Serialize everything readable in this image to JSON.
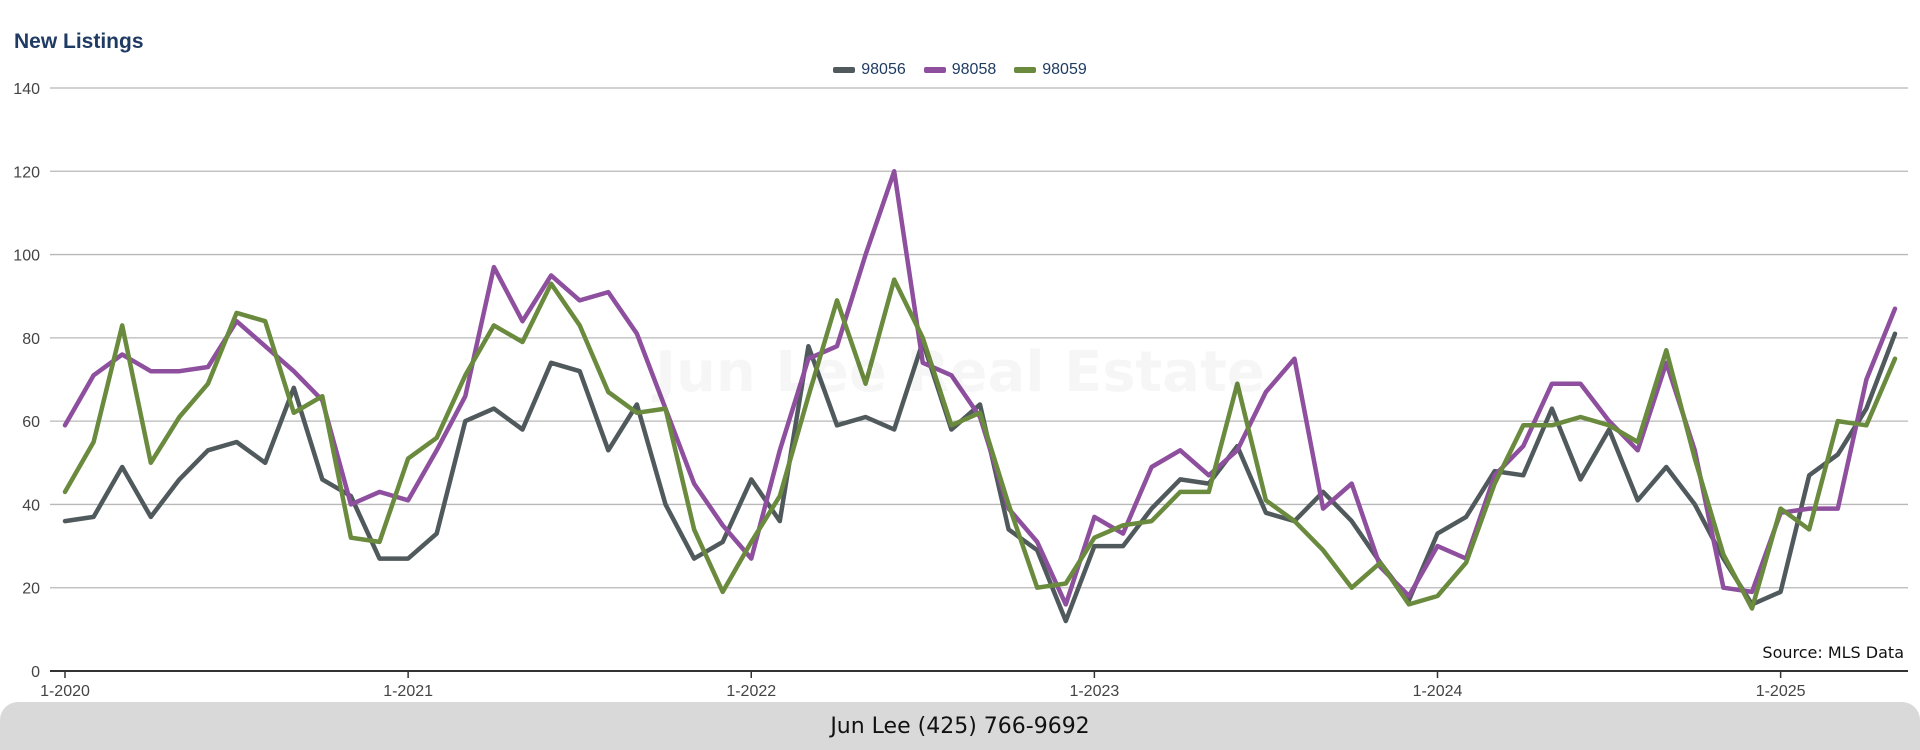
{
  "chart_data": {
    "type": "line",
    "title": "New Listings",
    "ylim": [
      0,
      140
    ],
    "y_ticks": [
      0,
      20,
      40,
      60,
      80,
      100,
      120,
      140
    ],
    "x_tick_labels": [
      "1-2020",
      "1-2021",
      "1-2022",
      "1-2023",
      "1-2024",
      "1-2025"
    ],
    "grid": true,
    "legend_position": "top-center",
    "x_start": "2020-01",
    "x_end": "2025-05",
    "x": [
      "2020-01",
      "2020-02",
      "2020-03",
      "2020-04",
      "2020-05",
      "2020-06",
      "2020-07",
      "2020-08",
      "2020-09",
      "2020-10",
      "2020-11",
      "2020-12",
      "2021-01",
      "2021-02",
      "2021-03",
      "2021-04",
      "2021-05",
      "2021-06",
      "2021-07",
      "2021-08",
      "2021-09",
      "2021-10",
      "2021-11",
      "2021-12",
      "2022-01",
      "2022-02",
      "2022-03",
      "2022-04",
      "2022-05",
      "2022-06",
      "2022-07",
      "2022-08",
      "2022-09",
      "2022-10",
      "2022-11",
      "2022-12",
      "2023-01",
      "2023-02",
      "2023-03",
      "2023-04",
      "2023-05",
      "2023-06",
      "2023-07",
      "2023-08",
      "2023-09",
      "2023-10",
      "2023-11",
      "2023-12",
      "2024-01",
      "2024-02",
      "2024-03",
      "2024-04",
      "2024-05",
      "2024-06",
      "2024-07",
      "2024-08",
      "2024-09",
      "2024-10",
      "2024-11",
      "2024-12",
      "2025-01",
      "2025-02",
      "2025-03",
      "2025-04",
      "2025-05"
    ],
    "series": [
      {
        "name": "98056",
        "color": "#505a5c",
        "values": [
          36,
          37,
          49,
          37,
          46,
          53,
          55,
          50,
          68,
          46,
          42,
          27,
          27,
          33,
          60,
          63,
          58,
          74,
          72,
          53,
          64,
          40,
          27,
          31,
          46,
          36,
          78,
          59,
          61,
          58,
          79,
          58,
          64,
          34,
          29,
          12,
          30,
          30,
          39,
          46,
          45,
          54,
          38,
          36,
          43,
          36,
          26,
          17,
          33,
          37,
          48,
          47,
          63,
          46,
          58,
          41,
          49,
          40,
          27,
          16,
          19,
          47,
          52,
          63,
          81
        ]
      },
      {
        "name": "98058",
        "color": "#8e4f9e",
        "values": [
          59,
          71,
          76,
          72,
          72,
          73,
          84,
          78,
          72,
          65,
          40,
          43,
          41,
          53,
          66,
          97,
          84,
          95,
          89,
          91,
          81,
          63,
          45,
          35,
          27,
          53,
          75,
          78,
          100,
          120,
          74,
          71,
          61,
          39,
          31,
          16,
          37,
          33,
          49,
          53,
          47,
          53,
          67,
          75,
          39,
          45,
          25,
          18,
          30,
          27,
          47,
          54,
          69,
          69,
          60,
          53,
          74,
          53,
          20,
          19,
          38,
          39,
          39,
          70,
          87
        ]
      },
      {
        "name": "98059",
        "color": "#6a8a3e",
        "values": [
          43,
          55,
          83,
          50,
          61,
          69,
          86,
          84,
          62,
          66,
          32,
          31,
          51,
          56,
          71,
          83,
          79,
          93,
          83,
          67,
          62,
          63,
          34,
          19,
          31,
          42,
          66,
          89,
          69,
          94,
          80,
          59,
          62,
          40,
          20,
          21,
          32,
          35,
          36,
          43,
          43,
          69,
          41,
          36,
          29,
          20,
          26,
          16,
          18,
          26,
          45,
          59,
          59,
          61,
          59,
          55,
          77,
          51,
          28,
          15,
          39,
          34,
          60,
          59,
          75
        ]
      }
    ]
  },
  "watermark": "Jun Lee Real Estate",
  "source_note": "Source: MLS Data",
  "footer": "Jun Lee (425) 766-9692"
}
